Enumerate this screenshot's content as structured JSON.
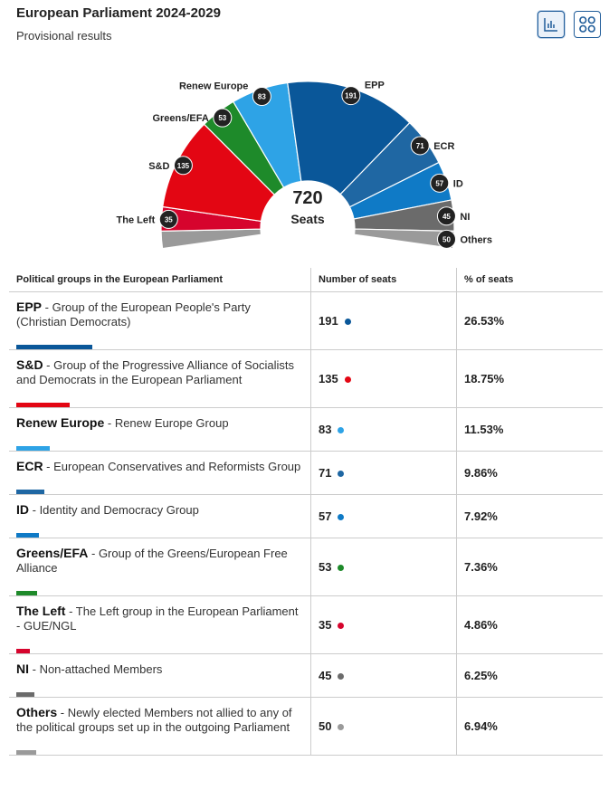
{
  "header": {
    "title": "European Parliament 2024-2029",
    "subtitle": "Provisional results"
  },
  "view_buttons": [
    {
      "name": "bar-chart-view",
      "active": true
    },
    {
      "name": "grid-view",
      "active": false
    }
  ],
  "chart_data": {
    "type": "hemicycle",
    "total": 720,
    "total_label": "Seats",
    "groups": [
      {
        "abbr": "The Left",
        "seats": 35,
        "color": "#d6042d"
      },
      {
        "abbr": "S&D",
        "seats": 135,
        "color": "#e30613"
      },
      {
        "abbr": "Greens/EFA",
        "seats": 53,
        "color": "#1e8a2a"
      },
      {
        "abbr": "Renew Europe",
        "seats": 83,
        "color": "#2ea3e6"
      },
      {
        "abbr": "EPP",
        "seats": 191,
        "color": "#0a5799"
      },
      {
        "abbr": "ECR",
        "seats": 71,
        "color": "#1f67a3"
      },
      {
        "abbr": "ID",
        "seats": 57,
        "color": "#0f7ac6"
      },
      {
        "abbr": "NI",
        "seats": 45,
        "color": "#6b6b6b"
      },
      {
        "abbr": "Others",
        "seats": 50,
        "color": "#9a9a9a"
      }
    ]
  },
  "table": {
    "headers": [
      "Political groups in the European Parliament",
      "Number of seats",
      "% of seats"
    ],
    "rows": [
      {
        "abbr": "EPP",
        "name": "Group of the European People's Party (Christian Democrats)",
        "seats": "191",
        "pct": "26.53%",
        "color": "#0a5799"
      },
      {
        "abbr": "S&D",
        "name": "Group of the Progressive Alliance of Socialists and Democrats in the European Parliament",
        "seats": "135",
        "pct": "18.75%",
        "color": "#e30613"
      },
      {
        "abbr": "Renew Europe",
        "name": "Renew Europe Group",
        "seats": "83",
        "pct": "11.53%",
        "color": "#2ea3e6"
      },
      {
        "abbr": "ECR",
        "name": "European Conservatives and Reformists Group",
        "seats": "71",
        "pct": "9.86%",
        "color": "#1f67a3"
      },
      {
        "abbr": "ID",
        "name": "Identity and Democracy Group",
        "seats": "57",
        "pct": "7.92%",
        "color": "#0f7ac6"
      },
      {
        "abbr": "Greens/EFA",
        "name": "Group of the Greens/European Free Alliance",
        "seats": "53",
        "pct": "7.36%",
        "color": "#1e8a2a"
      },
      {
        "abbr": "The Left",
        "name": "The Left group in the European Parliament - GUE/NGL",
        "seats": "35",
        "pct": "4.86%",
        "color": "#d6042d"
      },
      {
        "abbr": "NI",
        "name": "Non-attached Members",
        "seats": "45",
        "pct": "6.25%",
        "color": "#6b6b6b"
      },
      {
        "abbr": "Others",
        "name": "Newly elected Members not allied to any of the political groups set up in the outgoing Parliament",
        "seats": "50",
        "pct": "6.94%",
        "color": "#9a9a9a"
      }
    ]
  }
}
